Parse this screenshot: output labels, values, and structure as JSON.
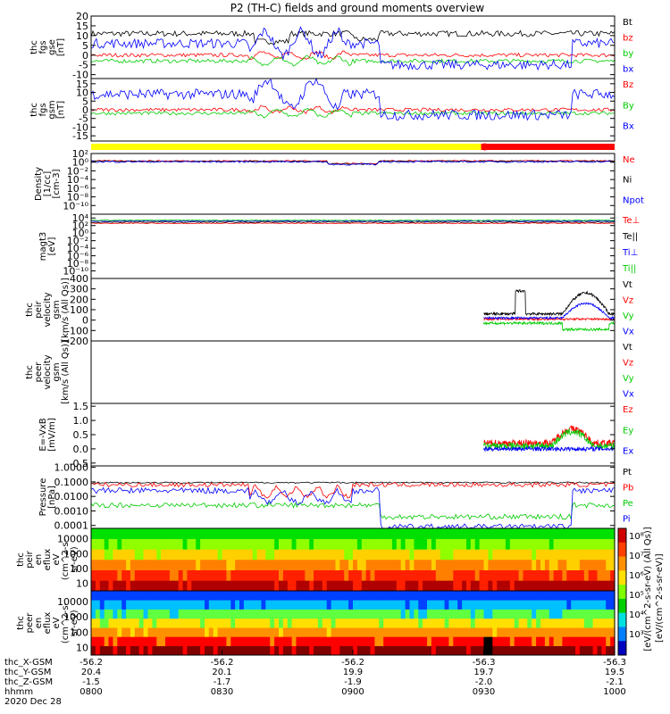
{
  "title": "P2 (TH-C) fields and ground moments overview",
  "chart_data": {
    "type": "line",
    "title": "P2 (TH-C) fields and ground moments overview",
    "x": {
      "tick_times": [
        "0800",
        "0830",
        "0900",
        "0930",
        "1000"
      ],
      "range": [
        "08:00",
        "10:00"
      ],
      "date": "2020 Dec 28"
    },
    "panels": [
      {
        "id": "fgs_gse",
        "ylabel": [
          "thc",
          "fgs",
          "gse",
          "[nT]"
        ],
        "ylim": [
          -12,
          20
        ],
        "scale": "linear",
        "yticks": [
          "20",
          "15",
          "10",
          "5",
          "0",
          "-5",
          "-10"
        ],
        "ytick_vals": [
          20,
          15,
          10,
          5,
          0,
          -5,
          -10
        ],
        "series": [
          {
            "name": "Bt",
            "color": "#000000",
            "base": 11,
            "noise": 3,
            "profile": "bt"
          },
          {
            "name": "bz",
            "color": "#ff0000",
            "base": 0,
            "noise": 2,
            "profile": "bz"
          },
          {
            "name": "by",
            "color": "#00cc00",
            "base": -3,
            "noise": 2,
            "profile": "by"
          },
          {
            "name": "bx",
            "color": "#0000ff",
            "base": 6,
            "noise": 5,
            "profile": "bx"
          }
        ]
      },
      {
        "id": "fgs_gsm",
        "ylabel": [
          "thc",
          "fgs",
          "gsm",
          "[nT]"
        ],
        "ylim": [
          -18,
          18
        ],
        "scale": "linear",
        "yticks": [
          "15",
          "10",
          "5",
          "0",
          "-5",
          "-10",
          "-15"
        ],
        "ytick_vals": [
          15,
          10,
          5,
          0,
          -5,
          -10,
          -15
        ],
        "series": [
          {
            "name": "Bz",
            "color": "#ff0000",
            "base": 0,
            "noise": 2,
            "profile": "bz"
          },
          {
            "name": "By",
            "color": "#00cc00",
            "base": -2,
            "noise": 2,
            "profile": "by"
          },
          {
            "name": "Bx",
            "color": "#0000ff",
            "base": 9,
            "noise": 6,
            "profile": "bx2"
          }
        ]
      },
      {
        "id": "density",
        "ylabel": [
          "Density",
          "[1/cc]",
          "[cm-3]"
        ],
        "ylim": [
          -12,
          2
        ],
        "scale": "log",
        "yticks": [
          "10²",
          "10⁰",
          "10⁻²",
          "10⁻⁴",
          "10⁻⁶",
          "10⁻⁸",
          "10⁻¹⁰"
        ],
        "ytick_vals": [
          2,
          0,
          -2,
          -4,
          -6,
          -8,
          -10
        ],
        "series": [
          {
            "name": "Ne",
            "color": "#ff0000",
            "base": 0.3,
            "noise": 0.3,
            "profile": "dens"
          },
          {
            "name": "Ni",
            "color": "#000000",
            "base": 0.2,
            "noise": 0.3,
            "profile": "dens"
          },
          {
            "name": "Npot",
            "color": "#0000ff",
            "base": 0.1,
            "noise": 0.4,
            "profile": "dens"
          }
        ]
      },
      {
        "id": "temp",
        "ylabel": [
          "magt3",
          "[eV]"
        ],
        "ylim": [
          -12,
          5
        ],
        "scale": "log",
        "yticks": [
          "10⁴",
          "10²",
          "10⁰",
          "10⁻²",
          "10⁻⁴",
          "10⁻⁶",
          "10⁻⁸",
          "10⁻¹⁰"
        ],
        "ytick_vals": [
          4,
          2,
          0,
          -2,
          -4,
          -6,
          -8,
          -10
        ],
        "series": [
          {
            "name": "Te⊥",
            "color": "#ff0000",
            "base": 2.6,
            "noise": 0.25,
            "profile": "flat"
          },
          {
            "name": "Te||",
            "color": "#000000",
            "base": 2.9,
            "noise": 0.2,
            "profile": "flat"
          },
          {
            "name": "Ti⊥",
            "color": "#0000ff",
            "base": 3.2,
            "noise": 0.25,
            "profile": "flat"
          },
          {
            "name": "Ti||",
            "color": "#00cc00",
            "base": 3.4,
            "noise": 0.2,
            "profile": "flat"
          }
        ]
      },
      {
        "id": "peir_velocity",
        "ylabel": [
          "thc",
          "peir",
          "velocity",
          "gsm",
          "[km/s (All Qs)]"
        ],
        "ylim": [
          -200,
          400
        ],
        "scale": "linear",
        "yticks": [
          "400",
          "300",
          "200",
          "100",
          "0",
          "-100",
          "-200"
        ],
        "ytick_vals": [
          400,
          300,
          200,
          100,
          0,
          -100,
          -200
        ],
        "start": 0.75,
        "series": [
          {
            "name": "Vt",
            "color": "#000000",
            "base": 60,
            "noise": 25,
            "profile": "vt"
          },
          {
            "name": "Vz",
            "color": "#ff0000",
            "base": 10,
            "noise": 20,
            "profile": "flat"
          },
          {
            "name": "Vy",
            "color": "#00cc00",
            "base": -30,
            "noise": 25,
            "profile": "vy"
          },
          {
            "name": "Vx",
            "color": "#0000ff",
            "base": 20,
            "noise": 20,
            "profile": "vx"
          }
        ]
      },
      {
        "id": "peer_velocity",
        "ylabel": [
          "thc",
          "peer",
          "velocity",
          "gsm",
          "[km/s (All Qs)]"
        ],
        "ylim": [
          0,
          1
        ],
        "scale": "linear",
        "yticks": [],
        "ytick_vals": [],
        "series": [
          {
            "name": "Vt",
            "color": "#000000",
            "empty": true
          },
          {
            "name": "Vz",
            "color": "#ff0000",
            "empty": true
          },
          {
            "name": "Vy",
            "color": "#00cc00",
            "empty": true
          },
          {
            "name": "Vx",
            "color": "#0000ff",
            "empty": true
          }
        ]
      },
      {
        "id": "efield",
        "ylabel": [
          "E=-VxB",
          "[mV/m]"
        ],
        "ylim": [
          -0.6,
          1.6
        ],
        "scale": "linear",
        "yticks": [
          "1.5",
          "1.0",
          "0.5",
          "0.0",
          "-0.5"
        ],
        "ytick_vals": [
          1.5,
          1.0,
          0.5,
          0.0,
          -0.5
        ],
        "start": 0.75,
        "series": [
          {
            "name": "Ez",
            "color": "#ff0000",
            "base": 0.2,
            "noise": 0.25,
            "profile": "ef"
          },
          {
            "name": "Ey",
            "color": "#00cc00",
            "base": 0.1,
            "noise": 0.25,
            "profile": "ef"
          },
          {
            "name": "Ex",
            "color": "#0000ff",
            "base": 0.0,
            "noise": 0.15,
            "profile": "flat"
          }
        ]
      },
      {
        "id": "pressure",
        "ylabel": [
          "Pressure",
          "[nPa]"
        ],
        "ylim": [
          -4.2,
          0.1
        ],
        "scale": "log",
        "yticks": [
          "1.0000",
          "0.1000",
          "0.0100",
          "0.0010",
          "0.0001"
        ],
        "ytick_vals": [
          0,
          -1,
          -2,
          -3,
          -4
        ],
        "series": [
          {
            "name": "Pt",
            "color": "#000000",
            "base": -1.05,
            "noise": 0.1,
            "profile": "pt"
          },
          {
            "name": "Pb",
            "color": "#ff0000",
            "base": -1.2,
            "noise": 0.3,
            "profile": "pb"
          },
          {
            "name": "Pe",
            "color": "#00cc00",
            "base": -2.6,
            "noise": 0.35,
            "profile": "pe"
          },
          {
            "name": "Pi",
            "color": "#0000ff",
            "base": -1.6,
            "noise": 0.4,
            "profile": "pi"
          }
        ]
      },
      {
        "id": "peir_spec",
        "type": "heatmap",
        "ylabel": [
          "thc",
          "peir",
          "en",
          "eflux",
          "eV",
          "(cm^2-s-",
          "sr-eV)"
        ],
        "yticks": [
          "10000",
          "1000",
          "100",
          "10"
        ],
        "ytick_vals": [
          4,
          3,
          2,
          1
        ]
      },
      {
        "id": "peer_spec",
        "type": "heatmap",
        "ylabel": [
          "thc",
          "peer",
          "en",
          "eflux",
          "eV",
          "(cm^2-s-",
          "sr-eV)"
        ],
        "yticks": [
          "10000",
          "1000",
          "100",
          "10"
        ],
        "ytick_vals": [
          4,
          3,
          2,
          1
        ]
      }
    ],
    "colorbar": {
      "ticks": [
        "10⁸",
        "10⁷",
        "10⁶",
        "10⁵",
        "10⁴",
        "10³"
      ],
      "label": "[eV/(cm^2-s-sr-eV)]",
      "top_label": "[eV/(cm^2-s-sr-eV) (All Qs)]"
    },
    "mode_bar": {
      "yellow_end": 0.745,
      "red_start": 0.745
    }
  },
  "ephemeris": {
    "labels": [
      "thc_X-GSM",
      "thc_Y-GSM",
      "thc_Z-GSM",
      "hhmm",
      "2020 Dec 28"
    ],
    "columns": [
      [
        "-56.2",
        "20.4",
        "-1.5",
        "0800"
      ],
      [
        "-56.2",
        "20.1",
        "-1.7",
        "0830"
      ],
      [
        "-56.2",
        "19.9",
        "-1.9",
        "0900"
      ],
      [
        "-56.3",
        "19.7",
        "-2.0",
        "0930"
      ],
      [
        "-56.3",
        "19.5",
        "-2.1",
        "1000"
      ]
    ]
  }
}
